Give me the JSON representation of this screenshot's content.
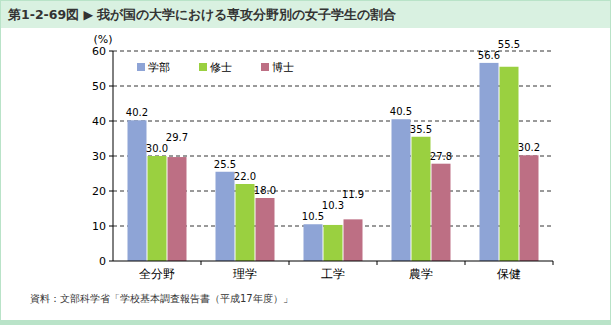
{
  "chart_data": {
    "type": "bar",
    "title": "第1-2-69図 ▶ 我が国の大学における専攻分野別の女子学生の割合",
    "y_label": "(%)",
    "source": "資料：文部科学省「学校基本調査報告書（平成17年度）」",
    "categories": [
      "全分野",
      "理学",
      "工学",
      "農学",
      "保健"
    ],
    "series": [
      {
        "name": "学部",
        "color": "#8ea4d6",
        "values": [
          40.2,
          25.5,
          10.5,
          40.5,
          56.6
        ],
        "value_labels": [
          "40.2",
          "25.5",
          "10.5",
          "40.5",
          "56.6"
        ]
      },
      {
        "name": "修士",
        "color": "#9ad040",
        "values": [
          30.0,
          22.0,
          10.3,
          35.5,
          55.5
        ],
        "value_labels": [
          "30.0",
          "22.0",
          "10.3",
          "35.5",
          "55.5"
        ]
      },
      {
        "name": "博士",
        "color": "#bd6f84",
        "values": [
          29.7,
          18.0,
          11.9,
          27.8,
          30.2
        ],
        "value_labels": [
          "29.7",
          "18.0",
          "11.9",
          "27.8",
          "30.2"
        ]
      }
    ],
    "ylim": [
      0,
      60
    ],
    "yticks": [
      0,
      10,
      20,
      30,
      40,
      50,
      60
    ],
    "grid": true,
    "legend": "top-left",
    "data_labels": true
  }
}
